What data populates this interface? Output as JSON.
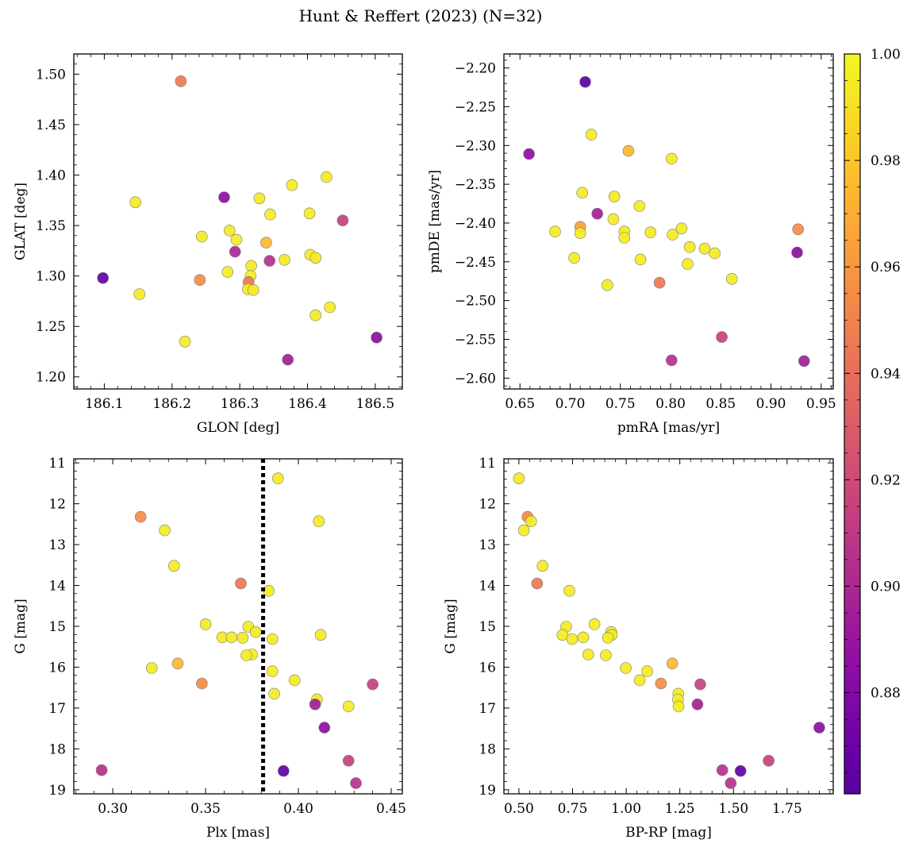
{
  "figure": {
    "title": "Hunt & Reffert (2023) (N=32)",
    "background": "#ffffff"
  },
  "chart_data": [
    {
      "type": "scatter",
      "panel": "top-left",
      "xlabel": "GLON [deg]",
      "ylabel": "GLAT [deg]",
      "xlim": [
        186.055,
        186.54
      ],
      "ylim": [
        1.188,
        1.52
      ],
      "y_inverted": false,
      "xticks": [
        186.1,
        186.2,
        186.3,
        186.4,
        186.5
      ],
      "xtick_labels": [
        "186.1",
        "186.2",
        "186.3",
        "186.4",
        "186.5"
      ],
      "yticks": [
        1.2,
        1.25,
        1.3,
        1.35,
        1.4,
        1.45,
        1.5
      ],
      "ytick_labels": [
        "1.20",
        "1.25",
        "1.30",
        "1.35",
        "1.40",
        "1.45",
        "1.50"
      ],
      "points": [
        {
          "x": 186.213,
          "y": 1.493,
          "c": 0.945
        },
        {
          "x": 186.146,
          "y": 1.373,
          "c": 0.995
        },
        {
          "x": 186.277,
          "y": 1.378,
          "c": 0.885
        },
        {
          "x": 186.428,
          "y": 1.398,
          "c": 0.995
        },
        {
          "x": 186.377,
          "y": 1.39,
          "c": 0.995
        },
        {
          "x": 186.329,
          "y": 1.377,
          "c": 0.995
        },
        {
          "x": 186.345,
          "y": 1.361,
          "c": 0.995
        },
        {
          "x": 186.403,
          "y": 1.362,
          "c": 0.995
        },
        {
          "x": 186.452,
          "y": 1.355,
          "c": 0.915
        },
        {
          "x": 186.285,
          "y": 1.345,
          "c": 0.995
        },
        {
          "x": 186.244,
          "y": 1.339,
          "c": 0.995
        },
        {
          "x": 186.295,
          "y": 1.336,
          "c": 0.995
        },
        {
          "x": 186.339,
          "y": 1.333,
          "c": 0.975
        },
        {
          "x": 186.293,
          "y": 1.324,
          "c": 0.9
        },
        {
          "x": 186.404,
          "y": 1.321,
          "c": 0.995
        },
        {
          "x": 186.412,
          "y": 1.318,
          "c": 0.995
        },
        {
          "x": 186.366,
          "y": 1.316,
          "c": 0.995
        },
        {
          "x": 186.344,
          "y": 1.315,
          "c": 0.905
        },
        {
          "x": 186.317,
          "y": 1.31,
          "c": 0.995
        },
        {
          "x": 186.282,
          "y": 1.304,
          "c": 0.995
        },
        {
          "x": 186.316,
          "y": 1.3,
          "c": 0.995
        },
        {
          "x": 186.098,
          "y": 1.298,
          "c": 0.865
        },
        {
          "x": 186.241,
          "y": 1.296,
          "c": 0.955
        },
        {
          "x": 186.313,
          "y": 1.294,
          "c": 0.945
        },
        {
          "x": 186.312,
          "y": 1.287,
          "c": 0.995
        },
        {
          "x": 186.32,
          "y": 1.286,
          "c": 0.995
        },
        {
          "x": 186.152,
          "y": 1.282,
          "c": 0.995
        },
        {
          "x": 186.433,
          "y": 1.269,
          "c": 0.995
        },
        {
          "x": 186.412,
          "y": 1.261,
          "c": 0.995
        },
        {
          "x": 186.219,
          "y": 1.235,
          "c": 0.995
        },
        {
          "x": 186.502,
          "y": 1.239,
          "c": 0.885
        },
        {
          "x": 186.371,
          "y": 1.217,
          "c": 0.895
        }
      ]
    },
    {
      "type": "scatter",
      "panel": "top-right",
      "xlabel": "pmRA [mas/yr]",
      "ylabel": "pmDE [mas/yr]",
      "xlim": [
        0.634,
        0.962
      ],
      "ylim": [
        -2.614,
        -2.182
      ],
      "y_inverted": false,
      "xticks": [
        0.65,
        0.7,
        0.75,
        0.8,
        0.85,
        0.9,
        0.95
      ],
      "xtick_labels": [
        "0.65",
        "0.70",
        "0.75",
        "0.80",
        "0.85",
        "0.90",
        "0.95"
      ],
      "yticks": [
        -2.6,
        -2.55,
        -2.5,
        -2.45,
        -2.4,
        -2.35,
        -2.3,
        -2.25,
        -2.2
      ],
      "ytick_labels": [
        "−2.60",
        "−2.55",
        "−2.50",
        "−2.45",
        "−2.40",
        "−2.35",
        "−2.30",
        "−2.25",
        "−2.20"
      ],
      "points": [
        {
          "x": 0.715,
          "y": -2.218,
          "c": 0.865
        },
        {
          "x": 0.659,
          "y": -2.311,
          "c": 0.885
        },
        {
          "x": 0.721,
          "y": -2.286,
          "c": 0.995
        },
        {
          "x": 0.758,
          "y": -2.307,
          "c": 0.975
        },
        {
          "x": 0.801,
          "y": -2.317,
          "c": 0.995
        },
        {
          "x": 0.712,
          "y": -2.361,
          "c": 0.995
        },
        {
          "x": 0.744,
          "y": -2.366,
          "c": 0.995
        },
        {
          "x": 0.769,
          "y": -2.378,
          "c": 0.995
        },
        {
          "x": 0.727,
          "y": -2.388,
          "c": 0.895
        },
        {
          "x": 0.743,
          "y": -2.395,
          "c": 0.995
        },
        {
          "x": 0.71,
          "y": -2.405,
          "c": 0.965
        },
        {
          "x": 0.685,
          "y": -2.411,
          "c": 0.995
        },
        {
          "x": 0.71,
          "y": -2.413,
          "c": 0.995
        },
        {
          "x": 0.754,
          "y": -2.411,
          "c": 0.995
        },
        {
          "x": 0.78,
          "y": -2.412,
          "c": 0.995
        },
        {
          "x": 0.811,
          "y": -2.407,
          "c": 0.995
        },
        {
          "x": 0.802,
          "y": -2.415,
          "c": 0.995
        },
        {
          "x": 0.754,
          "y": -2.419,
          "c": 0.995
        },
        {
          "x": 0.927,
          "y": -2.408,
          "c": 0.955
        },
        {
          "x": 0.819,
          "y": -2.431,
          "c": 0.995
        },
        {
          "x": 0.834,
          "y": -2.433,
          "c": 0.995
        },
        {
          "x": 0.844,
          "y": -2.439,
          "c": 0.995
        },
        {
          "x": 0.926,
          "y": -2.438,
          "c": 0.885
        },
        {
          "x": 0.704,
          "y": -2.445,
          "c": 0.995
        },
        {
          "x": 0.77,
          "y": -2.447,
          "c": 0.995
        },
        {
          "x": 0.817,
          "y": -2.453,
          "c": 0.995
        },
        {
          "x": 0.861,
          "y": -2.472,
          "c": 0.995
        },
        {
          "x": 0.737,
          "y": -2.48,
          "c": 0.995
        },
        {
          "x": 0.789,
          "y": -2.477,
          "c": 0.945
        },
        {
          "x": 0.851,
          "y": -2.547,
          "c": 0.915
        },
        {
          "x": 0.801,
          "y": -2.577,
          "c": 0.905
        },
        {
          "x": 0.933,
          "y": -2.578,
          "c": 0.895
        }
      ]
    },
    {
      "type": "scatter",
      "panel": "bottom-left",
      "xlabel": "Plx [mas]",
      "ylabel": "G [mag]",
      "xlim": [
        0.279,
        0.456
      ],
      "ylim": [
        19.1,
        10.9
      ],
      "y_inverted": true,
      "vline": {
        "x": 0.381,
        "style": "dotted",
        "color": "#000000"
      },
      "xticks": [
        0.3,
        0.35,
        0.4,
        0.45
      ],
      "xtick_labels": [
        "0.30",
        "0.35",
        "0.40",
        "0.45"
      ],
      "yticks": [
        11,
        12,
        13,
        14,
        15,
        16,
        17,
        18,
        19
      ],
      "ytick_labels": [
        "11",
        "12",
        "13",
        "14",
        "15",
        "16",
        "17",
        "18",
        "19"
      ],
      "points": [
        {
          "x": 0.389,
          "y": 11.38,
          "c": 0.995
        },
        {
          "x": 0.315,
          "y": 12.32,
          "c": 0.955
        },
        {
          "x": 0.411,
          "y": 12.43,
          "c": 0.995
        },
        {
          "x": 0.328,
          "y": 12.65,
          "c": 0.995
        },
        {
          "x": 0.333,
          "y": 13.52,
          "c": 0.995
        },
        {
          "x": 0.369,
          "y": 13.95,
          "c": 0.945
        },
        {
          "x": 0.384,
          "y": 14.13,
          "c": 0.995
        },
        {
          "x": 0.35,
          "y": 14.95,
          "c": 0.995
        },
        {
          "x": 0.373,
          "y": 15.01,
          "c": 0.995
        },
        {
          "x": 0.377,
          "y": 15.14,
          "c": 0.995
        },
        {
          "x": 0.412,
          "y": 15.21,
          "c": 0.995
        },
        {
          "x": 0.359,
          "y": 15.27,
          "c": 0.995
        },
        {
          "x": 0.364,
          "y": 15.27,
          "c": 0.995
        },
        {
          "x": 0.37,
          "y": 15.28,
          "c": 0.995
        },
        {
          "x": 0.386,
          "y": 15.31,
          "c": 0.995
        },
        {
          "x": 0.375,
          "y": 15.69,
          "c": 0.995
        },
        {
          "x": 0.372,
          "y": 15.71,
          "c": 0.995
        },
        {
          "x": 0.335,
          "y": 15.91,
          "c": 0.975
        },
        {
          "x": 0.321,
          "y": 16.02,
          "c": 0.995
        },
        {
          "x": 0.386,
          "y": 16.1,
          "c": 0.995
        },
        {
          "x": 0.398,
          "y": 16.32,
          "c": 0.995
        },
        {
          "x": 0.348,
          "y": 16.4,
          "c": 0.955
        },
        {
          "x": 0.44,
          "y": 16.42,
          "c": 0.915
        },
        {
          "x": 0.387,
          "y": 16.65,
          "c": 0.995
        },
        {
          "x": 0.41,
          "y": 16.79,
          "c": 0.995
        },
        {
          "x": 0.409,
          "y": 16.91,
          "c": 0.895
        },
        {
          "x": 0.427,
          "y": 16.96,
          "c": 0.995
        },
        {
          "x": 0.414,
          "y": 17.48,
          "c": 0.885
        },
        {
          "x": 0.427,
          "y": 18.29,
          "c": 0.915
        },
        {
          "x": 0.294,
          "y": 18.52,
          "c": 0.905
        },
        {
          "x": 0.392,
          "y": 18.54,
          "c": 0.865
        },
        {
          "x": 0.431,
          "y": 18.84,
          "c": 0.905
        }
      ]
    },
    {
      "type": "scatter",
      "panel": "bottom-right",
      "xlabel": "BP-RP [mag]",
      "ylabel": "G [mag]",
      "xlim": [
        0.43,
        1.965
      ],
      "ylim": [
        19.1,
        10.9
      ],
      "y_inverted": true,
      "xticks": [
        0.5,
        0.75,
        1.0,
        1.25,
        1.5,
        1.75
      ],
      "xtick_labels": [
        "0.50",
        "0.75",
        "1.00",
        "1.25",
        "1.50",
        "1.75"
      ],
      "yticks": [
        11,
        12,
        13,
        14,
        15,
        16,
        17,
        18,
        19
      ],
      "ytick_labels": [
        "11",
        "12",
        "13",
        "14",
        "15",
        "16",
        "17",
        "18",
        "19"
      ],
      "points": [
        {
          "x": 0.5,
          "y": 11.38,
          "c": 0.995
        },
        {
          "x": 0.54,
          "y": 12.32,
          "c": 0.955
        },
        {
          "x": 0.557,
          "y": 12.43,
          "c": 0.995
        },
        {
          "x": 0.523,
          "y": 12.65,
          "c": 0.995
        },
        {
          "x": 0.61,
          "y": 13.52,
          "c": 0.995
        },
        {
          "x": 0.585,
          "y": 13.95,
          "c": 0.945
        },
        {
          "x": 0.735,
          "y": 14.13,
          "c": 0.995
        },
        {
          "x": 0.852,
          "y": 14.95,
          "c": 0.995
        },
        {
          "x": 0.72,
          "y": 15.01,
          "c": 0.995
        },
        {
          "x": 0.93,
          "y": 15.14,
          "c": 0.995
        },
        {
          "x": 0.703,
          "y": 15.21,
          "c": 0.995
        },
        {
          "x": 0.933,
          "y": 15.21,
          "c": 0.995
        },
        {
          "x": 0.8,
          "y": 15.27,
          "c": 0.995
        },
        {
          "x": 0.915,
          "y": 15.28,
          "c": 0.995
        },
        {
          "x": 0.748,
          "y": 15.31,
          "c": 0.995
        },
        {
          "x": 0.823,
          "y": 15.69,
          "c": 0.995
        },
        {
          "x": 0.905,
          "y": 15.71,
          "c": 0.995
        },
        {
          "x": 1.215,
          "y": 15.91,
          "c": 0.975
        },
        {
          "x": 0.998,
          "y": 16.02,
          "c": 0.995
        },
        {
          "x": 1.098,
          "y": 16.1,
          "c": 0.995
        },
        {
          "x": 1.063,
          "y": 16.32,
          "c": 0.995
        },
        {
          "x": 1.162,
          "y": 16.4,
          "c": 0.955
        },
        {
          "x": 1.345,
          "y": 16.42,
          "c": 0.915
        },
        {
          "x": 1.243,
          "y": 16.65,
          "c": 0.995
        },
        {
          "x": 1.241,
          "y": 16.79,
          "c": 0.995
        },
        {
          "x": 1.332,
          "y": 16.91,
          "c": 0.895
        },
        {
          "x": 1.244,
          "y": 16.96,
          "c": 0.995
        },
        {
          "x": 1.9,
          "y": 17.48,
          "c": 0.885
        },
        {
          "x": 1.664,
          "y": 18.29,
          "c": 0.915
        },
        {
          "x": 1.448,
          "y": 18.52,
          "c": 0.905
        },
        {
          "x": 1.533,
          "y": 18.54,
          "c": 0.865
        },
        {
          "x": 1.487,
          "y": 18.84,
          "c": 0.905
        }
      ]
    }
  ],
  "colorbar": {
    "colormap": "plasma",
    "vmin": 0.861,
    "vmax": 1.0,
    "ticks": [
      0.88,
      0.9,
      0.92,
      0.94,
      0.96,
      0.98,
      1.0
    ],
    "tick_labels": [
      "0.88",
      "0.90",
      "0.92",
      "0.94",
      "0.96",
      "0.98",
      "1.00"
    ]
  }
}
